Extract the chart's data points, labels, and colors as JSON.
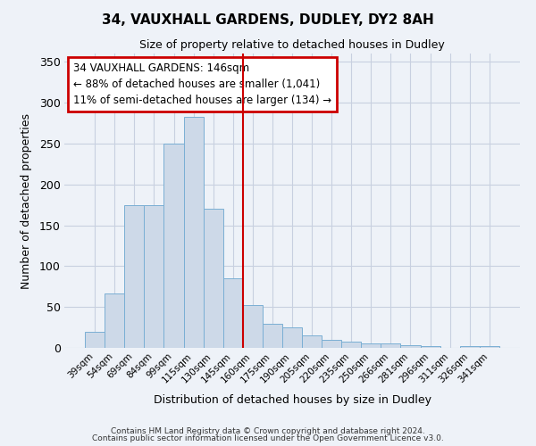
{
  "title": "34, VAUXHALL GARDENS, DUDLEY, DY2 8AH",
  "subtitle": "Size of property relative to detached houses in Dudley",
  "xlabel": "Distribution of detached houses by size in Dudley",
  "ylabel": "Number of detached properties",
  "bar_labels": [
    "39sqm",
    "54sqm",
    "69sqm",
    "84sqm",
    "99sqm",
    "115sqm",
    "130sqm",
    "145sqm",
    "160sqm",
    "175sqm",
    "190sqm",
    "205sqm",
    "220sqm",
    "235sqm",
    "250sqm",
    "266sqm",
    "281sqm",
    "296sqm",
    "311sqm",
    "326sqm",
    "341sqm"
  ],
  "bar_values": [
    20,
    67,
    175,
    175,
    250,
    283,
    170,
    85,
    52,
    30,
    25,
    15,
    10,
    8,
    6,
    5,
    3,
    2,
    0,
    2,
    2
  ],
  "bar_color": "#cdd9e8",
  "bar_edge_color": "#7aafd4",
  "vline_color": "#cc0000",
  "vline_x_idx": 7,
  "annotation_title": "34 VAUXHALL GARDENS: 146sqm",
  "annotation_line1": "← 88% of detached houses are smaller (1,041)",
  "annotation_line2": "11% of semi-detached houses are larger (134) →",
  "annotation_box_edge_color": "#cc0000",
  "ylim": [
    0,
    360
  ],
  "yticks": [
    0,
    50,
    100,
    150,
    200,
    250,
    300,
    350
  ],
  "footnote1": "Contains HM Land Registry data © Crown copyright and database right 2024.",
  "footnote2": "Contains public sector information licensed under the Open Government Licence v3.0.",
  "bg_color": "#eef2f8",
  "grid_color": "#c8d0e0",
  "title_fontsize": 11,
  "subtitle_fontsize": 9
}
